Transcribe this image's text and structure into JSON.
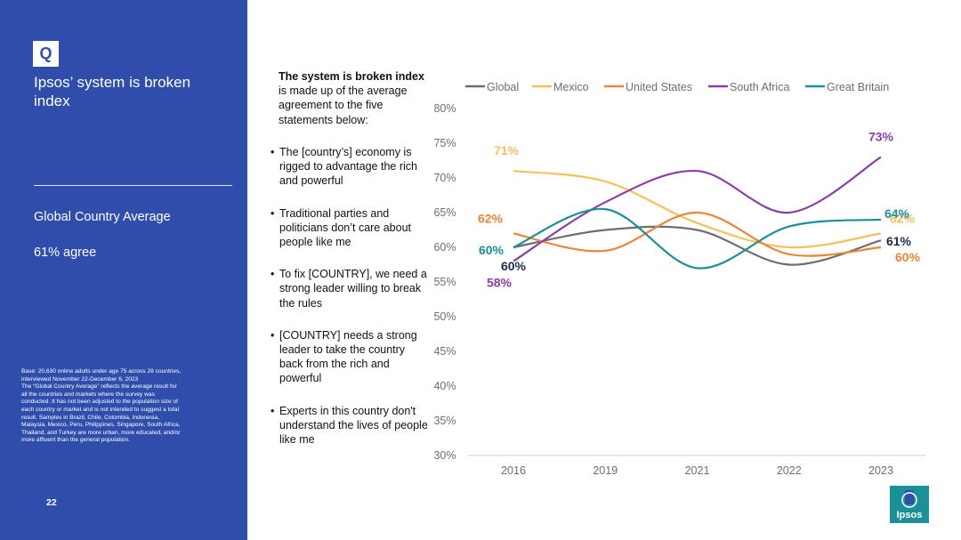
{
  "sidebar": {
    "badge": "Q",
    "title": "Ipsos’ system is broken index",
    "subtitle": "Global Country Average",
    "agree": "61% agree",
    "footnote_lines": [
      "Base: 20,630 online adults under age 75 across 28 countries,",
      "interviewed November 22-December 6, 2023",
      "The “Global Country Average” reflects the average result for",
      "all the countries and markets where the survey was",
      "conducted. It has not been adjusted to the population size of",
      "each country or market and is not intended to suggest a total",
      "result. Samples in Brazil, Chile, Colombia, Indonesia,",
      "Malaysia, Mexico, Peru, Philippines, Singapore, South Africa,",
      "Thailand, and Turkey are more urban, more educated, and/or",
      "more affluent than the general population."
    ],
    "page_number": "22"
  },
  "intro": {
    "bold": "The system is broken index",
    "rest": " is made up of the average agreement to the five statements below:"
  },
  "statements": [
    "The [country’s] economy is rigged to advantage the rich and powerful",
    "Traditional parties and politicians don’t care about people like me",
    "To fix [COUNTRY], we need a strong leader willing to break the rules",
    "[COUNTRY] needs a strong leader to take the country back from the rich and powerful",
    "Experts in this country don't understand the lives of people like me"
  ],
  "bullet_char": "•",
  "logo_text": "Ipsos",
  "chart_data": {
    "type": "line",
    "categories": [
      "2016",
      "2019",
      "2021",
      "2022",
      "2023"
    ],
    "ylim": [
      30,
      80
    ],
    "yticks": [
      30,
      35,
      40,
      45,
      50,
      55,
      60,
      65,
      70,
      75,
      80
    ],
    "ytick_suffix": "%",
    "series": [
      {
        "name": "Global",
        "color": "#6d6e71",
        "values": [
          60,
          62.5,
          62.5,
          57.5,
          61
        ],
        "labels": {
          "first": "60%",
          "last": "61%"
        },
        "label_color": "#1c2b4a"
      },
      {
        "name": "Mexico",
        "color": "#f6c15a",
        "values": [
          71,
          69.5,
          63.5,
          60,
          62
        ],
        "labels": {
          "first": "71%",
          "last": "62%"
        },
        "label_color": "#f6c15a"
      },
      {
        "name": "United States",
        "color": "#ee8436",
        "values": [
          62,
          59.5,
          65,
          59,
          60
        ],
        "labels": {
          "first": "62%",
          "last": "60%"
        },
        "label_color": "#ee8436"
      },
      {
        "name": "South Africa",
        "color": "#8a3fa5",
        "values": [
          58,
          66.5,
          71,
          65,
          73
        ],
        "labels": {
          "first": "58%",
          "last": "73%"
        },
        "label_color": "#8a3fa5"
      },
      {
        "name": "Great Britain",
        "color": "#1a9099",
        "values": [
          60,
          65.5,
          57,
          63,
          64
        ],
        "labels": {
          "first": "60%",
          "last": "64%"
        },
        "label_color": "#1a9099"
      }
    ]
  }
}
